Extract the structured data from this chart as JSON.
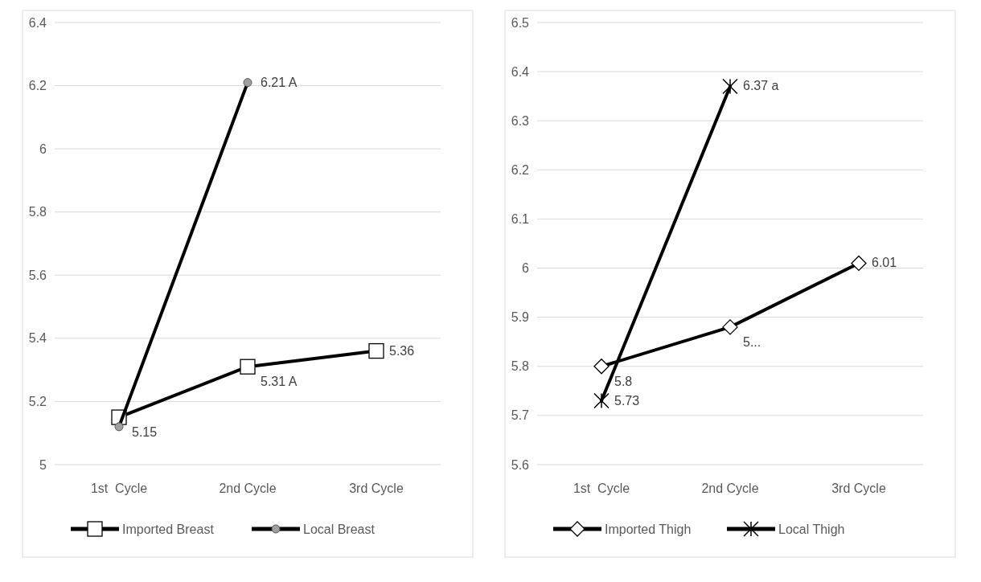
{
  "chart_data": [
    {
      "type": "line",
      "categories": [
        "1st  Cycle",
        "2nd Cycle",
        "3rd Cycle"
      ],
      "ylim": [
        5,
        6.4
      ],
      "yticks": [
        5,
        5.2,
        5.4,
        5.6,
        5.8,
        6,
        6.2,
        6.4
      ],
      "grid": "y",
      "legend": "bottom",
      "series": [
        {
          "name": "Imported Breast",
          "color": "#000000",
          "marker": "square",
          "values": [
            5.15,
            5.31,
            5.36
          ],
          "value_labels": [
            "5.15",
            "5.31 A",
            "5.36"
          ]
        },
        {
          "name": "Local Breast",
          "color": "#000000",
          "marker": "circle",
          "values": [
            5.12,
            6.21,
            null
          ],
          "value_labels": [
            null,
            "6.21 A",
            null
          ]
        }
      ]
    },
    {
      "type": "line",
      "categories": [
        "1st  Cycle",
        "2nd Cycle",
        "3rd Cycle"
      ],
      "ylim": [
        5.6,
        6.5
      ],
      "yticks": [
        5.6,
        5.7,
        5.8,
        5.9,
        6,
        6.1,
        6.2,
        6.3,
        6.4,
        6.5
      ],
      "grid": "y",
      "legend": "bottom",
      "series": [
        {
          "name": "Imported Thigh",
          "color": "#000000",
          "marker": "diamond",
          "values": [
            5.8,
            5.88,
            6.01
          ],
          "value_labels": [
            "5.8",
            "5...",
            "6.01"
          ]
        },
        {
          "name": "Local Thigh",
          "color": "#000000",
          "marker": "cross",
          "values": [
            5.73,
            6.37,
            null
          ],
          "value_labels": [
            "5.73",
            "6.37 a",
            null
          ]
        }
      ]
    }
  ]
}
